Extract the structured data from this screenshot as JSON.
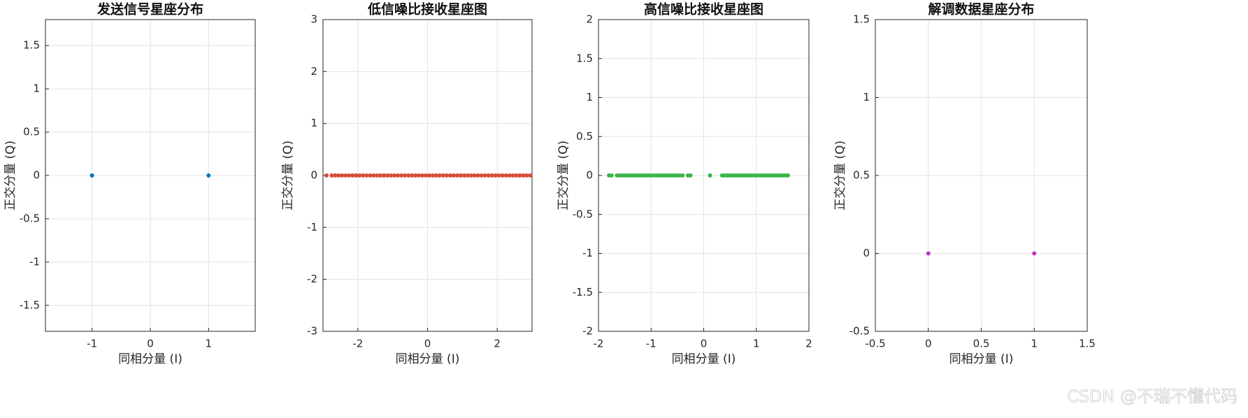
{
  "chart_data": [
    {
      "type": "scatter",
      "title": "发送信号星座分布",
      "x_label": "同相分量 (I)",
      "y_label": "正交分量 (Q)",
      "xlim": [
        -1.8,
        1.8
      ],
      "ylim": [
        -1.8,
        1.8
      ],
      "xticks": [
        -1,
        0,
        1
      ],
      "yticks": [
        -1.5,
        -1,
        -0.5,
        0,
        0.5,
        1,
        1.5
      ],
      "grid": true,
      "series": [
        {
          "color": "#0072bd",
          "x": [
            -1,
            1
          ],
          "values": [
            0,
            0
          ]
        }
      ]
    },
    {
      "type": "scatter",
      "title": "低信噪比接收星座图",
      "x_label": "同相分量 (I)",
      "y_label": "正交分量 (Q)",
      "xlim": [
        -3,
        3
      ],
      "ylim": [
        -3,
        3
      ],
      "xticks": [
        -2,
        0,
        2
      ],
      "yticks": [
        -3,
        -2,
        -1,
        0,
        1,
        2,
        3
      ],
      "grid": true,
      "series": [
        {
          "color": "#d94a38",
          "x": [
            -2.9,
            -2.75,
            -2.65,
            -2.55,
            -2.45,
            -2.35,
            -2.25,
            -2.15,
            -2.05,
            -1.95,
            -1.85,
            -1.75,
            -1.65,
            -1.55,
            -1.45,
            -1.35,
            -1.25,
            -1.15,
            -1.05,
            -0.95,
            -0.85,
            -0.75,
            -0.65,
            -0.55,
            -0.45,
            -0.35,
            -0.25,
            -0.15,
            -0.05,
            0.05,
            0.15,
            0.25,
            0.35,
            0.45,
            0.55,
            0.65,
            0.75,
            0.85,
            0.95,
            1.05,
            1.15,
            1.25,
            1.35,
            1.45,
            1.55,
            1.65,
            1.75,
            1.85,
            1.95,
            2.05,
            2.15,
            2.25,
            2.35,
            2.45,
            2.55,
            2.65,
            2.75,
            2.85,
            2.95
          ],
          "values": [
            0,
            0,
            0,
            0,
            0,
            0,
            0,
            0,
            0,
            0,
            0,
            0,
            0,
            0,
            0,
            0,
            0,
            0,
            0,
            0,
            0,
            0,
            0,
            0,
            0,
            0,
            0,
            0,
            0,
            0,
            0,
            0,
            0,
            0,
            0,
            0,
            0,
            0,
            0,
            0,
            0,
            0,
            0,
            0,
            0,
            0,
            0,
            0,
            0,
            0,
            0,
            0,
            0,
            0,
            0,
            0,
            0,
            0,
            0
          ]
        }
      ]
    },
    {
      "type": "scatter",
      "title": "高信噪比接收星座图",
      "x_label": "同相分量 (I)",
      "y_label": "正交分量 (Q)",
      "xlim": [
        -2,
        2
      ],
      "ylim": [
        -2,
        2
      ],
      "xticks": [
        -2,
        -1,
        0,
        1,
        2
      ],
      "yticks": [
        -2,
        -1.5,
        -1,
        -0.5,
        0,
        0.5,
        1,
        1.5,
        2
      ],
      "grid": true,
      "series": [
        {
          "color": "#3cb44b",
          "x": [
            -1.8,
            -1.75,
            -1.65,
            -1.6,
            -1.55,
            -1.5,
            -1.45,
            -1.4,
            -1.35,
            -1.3,
            -1.25,
            -1.2,
            -1.15,
            -1.1,
            -1.05,
            -1,
            -0.95,
            -0.9,
            -0.85,
            -0.8,
            -0.75,
            -0.7,
            -0.65,
            -0.6,
            -0.55,
            -0.5,
            -0.45,
            -0.4,
            -0.3,
            -0.25,
            0.12,
            0.35,
            0.4,
            0.45,
            0.5,
            0.55,
            0.6,
            0.65,
            0.7,
            0.75,
            0.8,
            0.85,
            0.9,
            0.95,
            1,
            1.05,
            1.1,
            1.15,
            1.2,
            1.25,
            1.3,
            1.35,
            1.4,
            1.45,
            1.5,
            1.55,
            1.6
          ],
          "values": [
            0,
            0,
            0,
            0,
            0,
            0,
            0,
            0,
            0,
            0,
            0,
            0,
            0,
            0,
            0,
            0,
            0,
            0,
            0,
            0,
            0,
            0,
            0,
            0,
            0,
            0,
            0,
            0,
            0,
            0,
            0,
            0,
            0,
            0,
            0,
            0,
            0,
            0,
            0,
            0,
            0,
            0,
            0,
            0,
            0,
            0,
            0,
            0,
            0,
            0,
            0,
            0,
            0,
            0,
            0,
            0,
            0
          ]
        }
      ]
    },
    {
      "type": "scatter",
      "title": "解调数据星座分布",
      "x_label": "同相分量 (I)",
      "y_label": "正交分量 (Q)",
      "xlim": [
        -0.5,
        1.5
      ],
      "ylim": [
        -0.5,
        1.5
      ],
      "xticks": [
        -0.5,
        0,
        0.5,
        1,
        1.5
      ],
      "yticks": [
        -0.5,
        0,
        0.5,
        1,
        1.5
      ],
      "grid": true,
      "series": [
        {
          "color": "#c030c8",
          "x": [
            0,
            1
          ],
          "values": [
            0,
            0
          ]
        }
      ]
    }
  ],
  "watermark": "CSDN @不瑞不懂代码"
}
